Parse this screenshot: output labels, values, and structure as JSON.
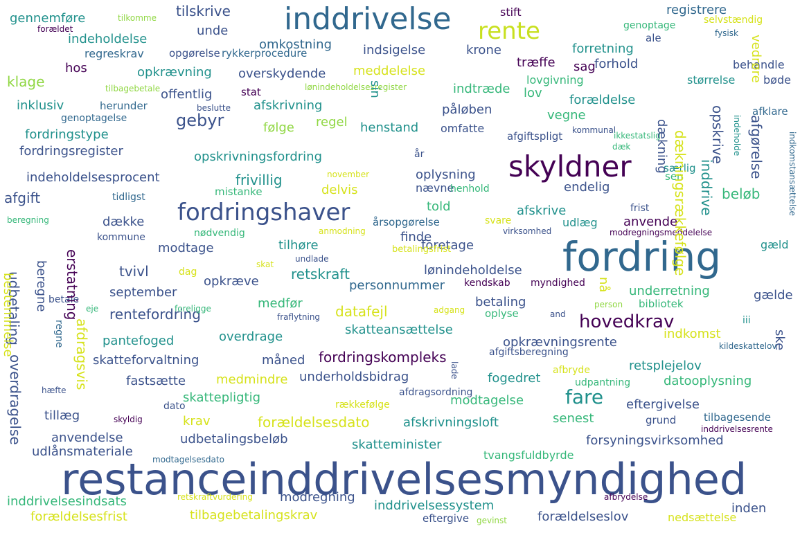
{
  "title": "",
  "palette": {
    "purple": "#440154",
    "indigo": "#3b528b",
    "blue": "#31688e",
    "teal": "#21918c",
    "green": "#35b779",
    "lime": "#90d743",
    "yellow": "#d6e21b"
  },
  "words": [
    {
      "text": "restanceinddrivelsesmyndighed",
      "color": "#3b528b"
    },
    {
      "text": "fordring",
      "color": "#31688e"
    },
    {
      "text": "skyldner",
      "color": "#440154"
    },
    {
      "text": "inddrivelse",
      "color": "#31688e"
    },
    {
      "text": "fordringshaver",
      "color": "#3b528b"
    },
    {
      "text": "rente",
      "color": "#c8e020"
    },
    {
      "text": "hovedkrav",
      "color": "#440154"
    },
    {
      "text": "fare",
      "color": "#21918c"
    },
    {
      "text": "gebyr",
      "color": "#3b528b"
    },
    {
      "text": "gennemføre",
      "color": "#21918c"
    },
    {
      "text": "tilskrive",
      "color": "#3b528b"
    },
    {
      "text": "registrere",
      "color": "#31688e"
    },
    {
      "text": "indeholdelse",
      "color": "#21918c"
    },
    {
      "text": "unde",
      "color": "#3b528b"
    },
    {
      "text": "omkostning",
      "color": "#31688e"
    },
    {
      "text": "sag",
      "color": "#440154"
    },
    {
      "text": "regreskrav",
      "color": "#31688e"
    },
    {
      "text": "opgørelse",
      "color": "#3b528b"
    },
    {
      "text": "rykkerprocedure",
      "color": "#31688e"
    },
    {
      "text": "indsigelse",
      "color": "#3b528b"
    },
    {
      "text": "krone",
      "color": "#3b528b"
    },
    {
      "text": "forretning",
      "color": "#21918c"
    },
    {
      "text": "træffe",
      "color": "#440154"
    },
    {
      "text": "forhold",
      "color": "#3b528b"
    },
    {
      "text": "behandle",
      "color": "#3b528b"
    },
    {
      "text": "hos",
      "color": "#440154"
    },
    {
      "text": "opkrævning",
      "color": "#21918c"
    },
    {
      "text": "overskydende",
      "color": "#3b528b"
    },
    {
      "text": "meddelelse",
      "color": "#d6e21b"
    },
    {
      "text": "lovgivning",
      "color": "#35b779"
    },
    {
      "text": "størrelse",
      "color": "#21918c"
    },
    {
      "text": "klage",
      "color": "#90d743"
    },
    {
      "text": "offentlig",
      "color": "#3b528b"
    },
    {
      "text": "stat",
      "color": "#440154"
    },
    {
      "text": "indtræde",
      "color": "#35b779"
    },
    {
      "text": "lov",
      "color": "#35b779"
    },
    {
      "text": "bøde",
      "color": "#3b528b"
    },
    {
      "text": "inklusiv",
      "color": "#21918c"
    },
    {
      "text": "herunder",
      "color": "#31688e"
    },
    {
      "text": "afskrivning",
      "color": "#21918c"
    },
    {
      "text": "påløben",
      "color": "#3b528b"
    },
    {
      "text": "forældelse",
      "color": "#21918c"
    },
    {
      "text": "afklare",
      "color": "#31688e"
    },
    {
      "text": "genoptagelse",
      "color": "#31688e"
    },
    {
      "text": "følge",
      "color": "#90d743"
    },
    {
      "text": "regel",
      "color": "#90d743"
    },
    {
      "text": "vegne",
      "color": "#35b779"
    },
    {
      "text": "fordringstype",
      "color": "#21918c"
    },
    {
      "text": "henstand",
      "color": "#21918c"
    },
    {
      "text": "omfatte",
      "color": "#3b528b"
    },
    {
      "text": "afgiftspligt",
      "color": "#3b528b"
    },
    {
      "text": "fordringsregister",
      "color": "#3b528b"
    },
    {
      "text": "opskrivningsfordring",
      "color": "#21918c"
    },
    {
      "text": "indeholdelsesprocent",
      "color": "#3b528b"
    },
    {
      "text": "frivillig",
      "color": "#21918c"
    },
    {
      "text": "oplysning",
      "color": "#3b528b"
    },
    {
      "text": "særlig",
      "color": "#21918c"
    },
    {
      "text": "afgift",
      "color": "#3b528b"
    },
    {
      "text": "delvis",
      "color": "#d6e21b"
    },
    {
      "text": "nævne",
      "color": "#3b528b"
    },
    {
      "text": "henhold",
      "color": "#35b779"
    },
    {
      "text": "endelig",
      "color": "#3b528b"
    },
    {
      "text": "tidligst",
      "color": "#31688e"
    },
    {
      "text": "mistanke",
      "color": "#35b779"
    },
    {
      "text": "beløb",
      "color": "#35b779"
    },
    {
      "text": "told",
      "color": "#35b779"
    },
    {
      "text": "afskrive",
      "color": "#21918c"
    },
    {
      "text": "frist",
      "color": "#3b528b"
    },
    {
      "text": "dække",
      "color": "#3b528b"
    },
    {
      "text": "årsopgørelse",
      "color": "#31688e"
    },
    {
      "text": "udlæg",
      "color": "#21918c"
    },
    {
      "text": "anvende",
      "color": "#440154"
    },
    {
      "text": "nødvendig",
      "color": "#35b779"
    },
    {
      "text": "svare",
      "color": "#d6e21b"
    },
    {
      "text": "kommune",
      "color": "#3b528b"
    },
    {
      "text": "finde",
      "color": "#3b528b"
    },
    {
      "text": "modtage",
      "color": "#3b528b"
    },
    {
      "text": "tilhøre",
      "color": "#21918c"
    },
    {
      "text": "foretage",
      "color": "#3b528b"
    },
    {
      "text": "betalingsfrist",
      "color": "#d6e21b"
    },
    {
      "text": "gæld",
      "color": "#21918c"
    },
    {
      "text": "tvivl",
      "color": "#3b528b"
    },
    {
      "text": "lønindeholdelse",
      "color": "#3b528b"
    },
    {
      "text": "dag",
      "color": "#d6e21b"
    },
    {
      "text": "opkræve",
      "color": "#3b528b"
    },
    {
      "text": "retskraft",
      "color": "#21918c"
    },
    {
      "text": "kendskab",
      "color": "#440154"
    },
    {
      "text": "myndighed",
      "color": "#440154"
    },
    {
      "text": "september",
      "color": "#3b528b"
    },
    {
      "text": "personnummer",
      "color": "#31688e"
    },
    {
      "text": "underretning",
      "color": "#35b779"
    },
    {
      "text": "bibliotek",
      "color": "#35b779"
    },
    {
      "text": "gælde",
      "color": "#3b528b"
    },
    {
      "text": "betale",
      "color": "#3b528b"
    },
    {
      "text": "medfør",
      "color": "#35b779"
    },
    {
      "text": "betaling",
      "color": "#3b528b"
    },
    {
      "text": "rentefordring",
      "color": "#3b528b"
    },
    {
      "text": "datafejl",
      "color": "#d6e21b"
    },
    {
      "text": "oplyse",
      "color": "#35b779"
    },
    {
      "text": "and",
      "color": "#3b528b"
    },
    {
      "text": "iii",
      "color": "#21918c"
    },
    {
      "text": "pantefoged",
      "color": "#21918c"
    },
    {
      "text": "overdrage",
      "color": "#21918c"
    },
    {
      "text": "skatteansættelse",
      "color": "#21918c"
    },
    {
      "text": "indkomst",
      "color": "#d6e21b"
    },
    {
      "text": "opkrævningsrente",
      "color": "#3b528b"
    },
    {
      "text": "skatteforvaltning",
      "color": "#3b528b"
    },
    {
      "text": "måned",
      "color": "#3b528b"
    },
    {
      "text": "fordringskompleks",
      "color": "#440154"
    },
    {
      "text": "afgiftsberegning",
      "color": "#3b528b"
    },
    {
      "text": "retsplejelov",
      "color": "#21918c"
    },
    {
      "text": "fastsætte",
      "color": "#3b528b"
    },
    {
      "text": "medmindre",
      "color": "#d6e21b"
    },
    {
      "text": "underholdsbidrag",
      "color": "#3b528b"
    },
    {
      "text": "fogedret",
      "color": "#21918c"
    },
    {
      "text": "datooplysning",
      "color": "#35b779"
    },
    {
      "text": "afbryde",
      "color": "#d6e21b"
    },
    {
      "text": "udpantning",
      "color": "#35b779"
    },
    {
      "text": "afdragsordning",
      "color": "#3b528b"
    },
    {
      "text": "skattepligtig",
      "color": "#35b779"
    },
    {
      "text": "dato",
      "color": "#3b528b"
    },
    {
      "text": "rækkefølge",
      "color": "#d6e21b"
    },
    {
      "text": "modtagelse",
      "color": "#35b779"
    },
    {
      "text": "eftergivelse",
      "color": "#3b528b"
    },
    {
      "text": "tillæg",
      "color": "#3b528b"
    },
    {
      "text": "krav",
      "color": "#d6e21b"
    },
    {
      "text": "forældelsesdato",
      "color": "#d6e21b"
    },
    {
      "text": "afskrivningsloft",
      "color": "#21918c"
    },
    {
      "text": "senest",
      "color": "#35b779"
    },
    {
      "text": "grund",
      "color": "#3b528b"
    },
    {
      "text": "tilbagesende",
      "color": "#31688e"
    },
    {
      "text": "anvendelse",
      "color": "#3b528b"
    },
    {
      "text": "udbetalingsbeløb",
      "color": "#3b528b"
    },
    {
      "text": "skatteminister",
      "color": "#21918c"
    },
    {
      "text": "forsyningsvirksomhed",
      "color": "#3b528b"
    },
    {
      "text": "udlånsmateriale",
      "color": "#3b528b"
    },
    {
      "text": "tvangsfuldbyrde",
      "color": "#35b779"
    },
    {
      "text": "modregning",
      "color": "#3b528b"
    },
    {
      "text": "inddrivelsessystem",
      "color": "#21918c"
    },
    {
      "text": "inden",
      "color": "#3b528b"
    },
    {
      "text": "inddrivelsesindsats",
      "color": "#35b779"
    },
    {
      "text": "forældelsesfrist",
      "color": "#d6e21b"
    },
    {
      "text": "tilbagebetalingskrav",
      "color": "#d6e21b"
    },
    {
      "text": "forældelseslov",
      "color": "#3b528b"
    },
    {
      "text": "nedsættelse",
      "color": "#d6e21b"
    },
    {
      "text": "eftergive",
      "color": "#3b528b"
    },
    {
      "text": "stift",
      "color": "#440154"
    },
    {
      "text": "ale",
      "color": "#3b528b"
    },
    {
      "text": "genoptage",
      "color": "#35b779"
    },
    {
      "text": "selvstændig",
      "color": "#d6e21b"
    },
    {
      "text": "fysisk",
      "color": "#31688e"
    },
    {
      "text": "tilkomme",
      "color": "#90d743"
    },
    {
      "text": "forældet",
      "color": "#440154"
    },
    {
      "text": "tilbagebetale",
      "color": "#90d743"
    },
    {
      "text": "lønindeholdelsesregister",
      "color": "#90d743"
    },
    {
      "text": "beslutte",
      "color": "#3b528b"
    },
    {
      "text": "kommunal",
      "color": "#3b528b"
    },
    {
      "text": "ikkestatslig",
      "color": "#35b779"
    },
    {
      "text": "dæk",
      "color": "#35b779"
    },
    {
      "text": "år",
      "color": "#3b528b"
    },
    {
      "text": "november",
      "color": "#d6e21b"
    },
    {
      "text": "sen",
      "color": "#35b779"
    },
    {
      "text": "beregning",
      "color": "#35b779"
    },
    {
      "text": "anmodning",
      "color": "#d6e21b"
    },
    {
      "text": "virksomhed",
      "color": "#3b528b"
    },
    {
      "text": "modregningsmeddelelse",
      "color": "#440154"
    },
    {
      "text": "skat",
      "color": "#d6e21b"
    },
    {
      "text": "undlade",
      "color": "#3b528b"
    },
    {
      "text": "foreligge",
      "color": "#35b779"
    },
    {
      "text": "person",
      "color": "#90d743"
    },
    {
      "text": "eje",
      "color": "#35b779"
    },
    {
      "text": "fraflytning",
      "color": "#3b528b"
    },
    {
      "text": "adgang",
      "color": "#d6e21b"
    },
    {
      "text": "kildeskattelov",
      "color": "#31688e"
    },
    {
      "text": "hæfte",
      "color": "#3b528b"
    },
    {
      "text": "skyldig",
      "color": "#440154"
    },
    {
      "text": "inddrivelsesrente",
      "color": "#440154"
    },
    {
      "text": "modtagelsesdato",
      "color": "#31688e"
    },
    {
      "text": "retskraftvurdering",
      "color": "#d6e21b"
    },
    {
      "text": "afbrydelse",
      "color": "#440154"
    },
    {
      "text": "gevinst",
      "color": "#90d743"
    },
    {
      "text": "dækningsrækkefølge",
      "color": "#d6e21b"
    },
    {
      "text": "opskrive",
      "color": "#3b528b"
    },
    {
      "text": "afgørelse",
      "color": "#3b528b"
    },
    {
      "text": "indkomstansættelse",
      "color": "#31688e"
    },
    {
      "text": "indeholde",
      "color": "#21918c"
    },
    {
      "text": "vedrøre",
      "color": "#d6e21b"
    },
    {
      "text": "dækning",
      "color": "#3b528b"
    },
    {
      "text": "sin",
      "color": "#21918c"
    },
    {
      "text": "inddrive",
      "color": "#21918c"
    },
    {
      "text": "erstatning",
      "color": "#440154"
    },
    {
      "text": "udbetaling",
      "color": "#3b528b"
    },
    {
      "text": "beregne",
      "color": "#3b528b"
    },
    {
      "text": "afdragsvis",
      "color": "#d6e21b"
    },
    {
      "text": "bestemmelse",
      "color": "#d6e21b"
    },
    {
      "text": "overdragelse",
      "color": "#3b528b"
    },
    {
      "text": "regne",
      "color": "#31688e"
    },
    {
      "text": "nå",
      "color": "#d6e21b"
    },
    {
      "text": "ske",
      "color": "#3b528b"
    },
    {
      "text": "lade",
      "color": "#3b528b"
    }
  ]
}
